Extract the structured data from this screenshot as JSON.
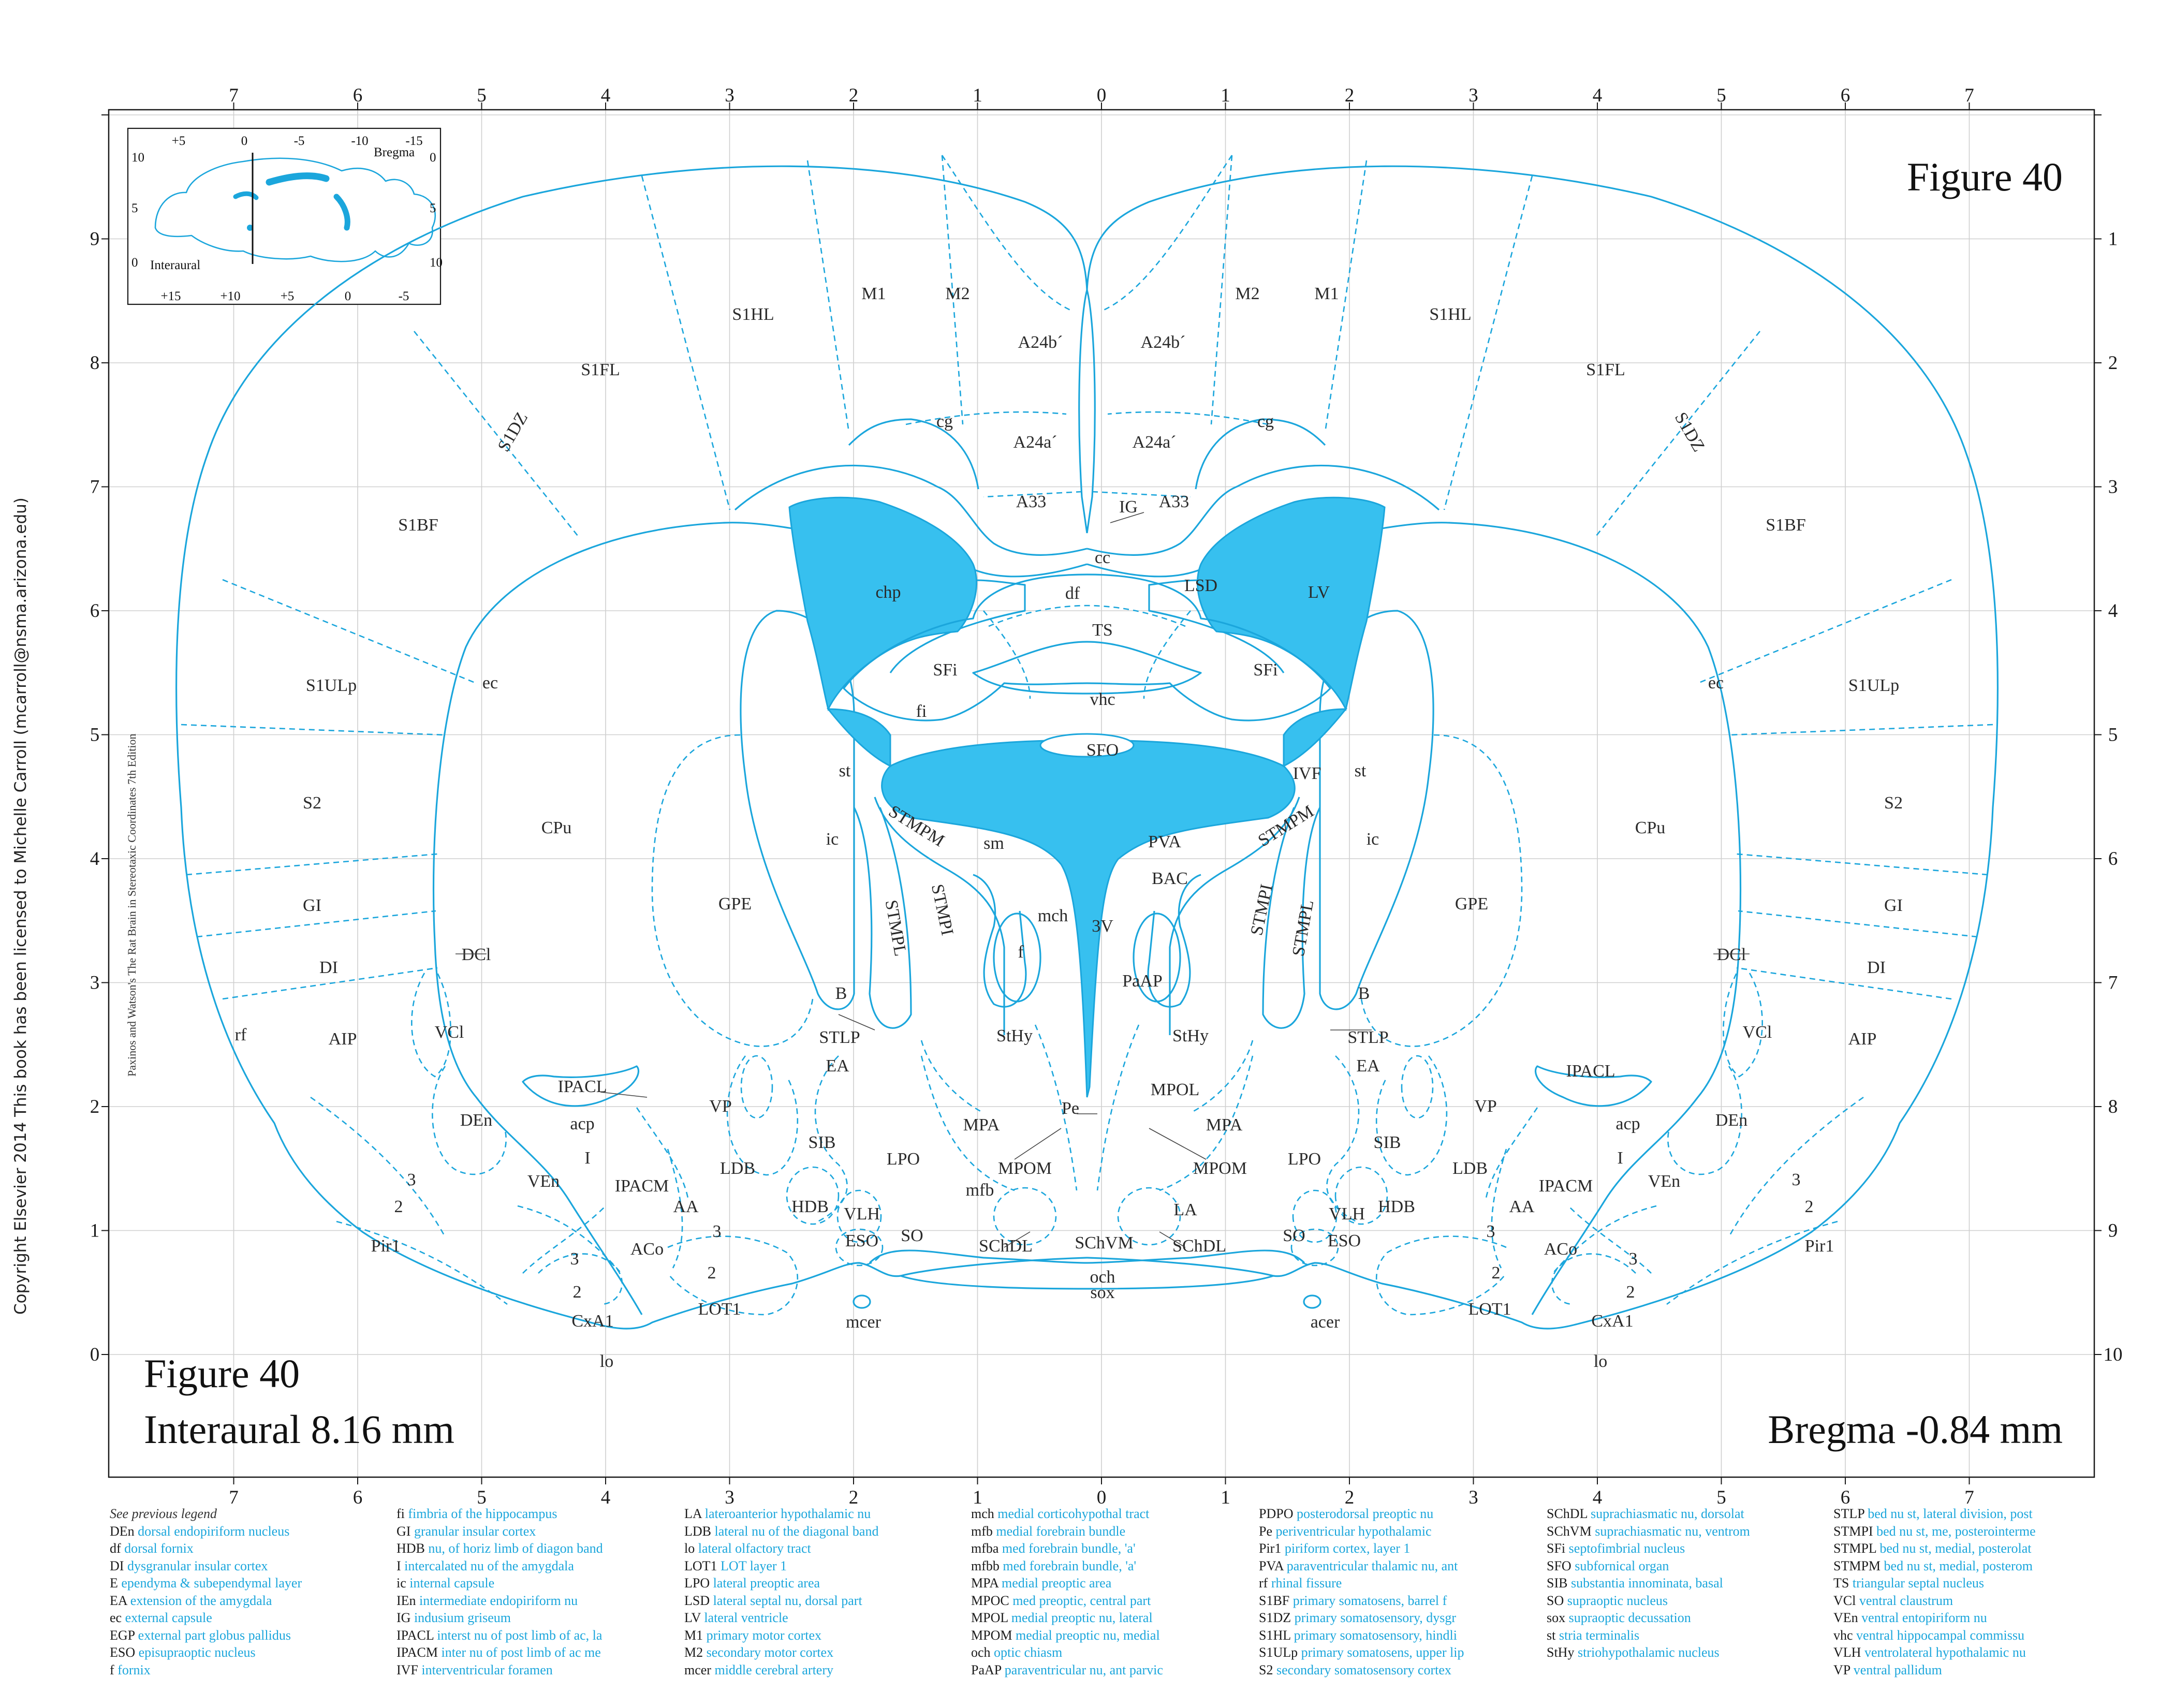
{
  "figure": {
    "title_top": "Figure 40",
    "title_bottom": "Figure 40",
    "interaural": "Interaural 8.16 mm",
    "bregma": "Bregma -0.84 mm"
  },
  "copyright": "Copyright Elsevier 2014 This book has been licensed to Michelle Carroll (mcarroll@nsma.arizona.edu)",
  "book_credit": "Paxinos and Watson's The Rat Brain in Stereotaxic Coordinates   7th Edition",
  "scales": {
    "top_ticks": [
      "7",
      "6",
      "5",
      "4",
      "3",
      "2",
      "1",
      "0",
      "1",
      "2",
      "3",
      "4",
      "5",
      "6",
      "7"
    ],
    "bottom_ticks": [
      "7",
      "6",
      "5",
      "4",
      "3",
      "2",
      "1",
      "0",
      "1",
      "2",
      "3",
      "4",
      "5",
      "6",
      "7"
    ],
    "left_ticks": [
      "9",
      "8",
      "7",
      "6",
      "5",
      "4",
      "3",
      "2",
      "1",
      "0"
    ],
    "right_ticks": [
      "1",
      "2",
      "3",
      "4",
      "5",
      "6",
      "7",
      "8",
      "9",
      "10"
    ]
  },
  "inset": {
    "bregma_label": "Bregma",
    "interaural_label": "Interaural",
    "top_ticks": [
      "+5",
      "0",
      "-5",
      "-10",
      "-15"
    ],
    "bottom_ticks": [
      "+15",
      "+10",
      "+5",
      "0",
      "-5"
    ],
    "left_ticks": [
      "10",
      "5",
      "0"
    ],
    "right_ticks": [
      "0",
      "5",
      "10"
    ]
  },
  "regions": {
    "M1": "M1",
    "M2": "M2",
    "S1HL": "S1HL",
    "S1FL": "S1FL",
    "S1DZ": "S1DZ",
    "S1BF": "S1BF",
    "S1ULp": "S1ULp",
    "S2": "S2",
    "GI": "GI",
    "DI": "DI",
    "AIP": "AIP",
    "A24b": "A24b´",
    "A24a": "A24a´",
    "A33": "A33",
    "cg": "cg",
    "IG": "IG",
    "cc": "cc",
    "chp": "chp",
    "LV": "LV",
    "df": "df",
    "LSD": "LSD",
    "TS": "TS",
    "SFi": "SFi",
    "vhc": "vhc",
    "fi": "fi",
    "SFO": "SFO",
    "IVF": "IVF",
    "st": "st",
    "ic": "ic",
    "ec": "ec",
    "CPu": "CPu",
    "GPE": "GPE",
    "STMPM": "STMPM",
    "sm": "sm",
    "PVA": "PVA",
    "BAC": "BAC",
    "mch": "mch",
    "f": "f",
    "V3": "3V",
    "PaAP": "PaAP",
    "STMPI": "STMPI",
    "STMPL": "STMPL",
    "B": "B",
    "STLP": "STLP",
    "StHy": "StHy",
    "DCl": "DCl",
    "VCl": "VCl",
    "rf": "rf",
    "EA": "EA",
    "IPACL": "IPACL",
    "acp": "acp",
    "DEn": "DEn",
    "VP": "VP",
    "Pe": "Pe",
    "MPOL": "MPOL",
    "MPA": "MPA",
    "SIB": "SIB",
    "LDB": "LDB",
    "LPO": "LPO",
    "MPOM": "MPOM",
    "mfb": "mfb",
    "I": "I",
    "VEn": "VEn",
    "IPACM": "IPACM",
    "AA": "AA",
    "HDB": "HDB",
    "VLH": "VLH",
    "LA": "LA",
    "ESO": "ESO",
    "SO": "SO",
    "SChDL": "SChDL",
    "SChVM": "SChVM",
    "och": "och",
    "sox": "sox",
    "ACo": "ACo",
    "LOT1": "LOT1",
    "CxA1": "CxA1",
    "lo": "lo",
    "Pir1": "Pir1",
    "mcer": "mcer",
    "acer": "acer",
    "n1": "1",
    "n2": "2",
    "n3": "3"
  },
  "legend": {
    "header": "See previous legend",
    "columns": [
      [
        [
          "DEn",
          "dorsal endopiriform nucleus"
        ],
        [
          "df",
          "dorsal fornix"
        ],
        [
          "DI",
          "dysgranular insular cortex"
        ],
        [
          "E",
          "ependyma & subependymal layer"
        ],
        [
          "EA",
          "extension of the amygdala"
        ],
        [
          "ec",
          "external capsule"
        ],
        [
          "EGP",
          "external part globus pallidus"
        ],
        [
          "ESO",
          "episupraoptic nucleus"
        ],
        [
          "f",
          "fornix"
        ]
      ],
      [
        [
          "fi",
          "fimbria of the hippocampus"
        ],
        [
          "GI",
          "granular insular cortex"
        ],
        [
          "HDB",
          "nu, of horiz limb of diagon band"
        ],
        [
          "I",
          "intercalated nu of the amygdala"
        ],
        [
          "ic",
          "internal capsule"
        ],
        [
          "IEn",
          "intermediate endopiriform nu"
        ],
        [
          "IG",
          "indusium griseum"
        ],
        [
          "IPACL",
          "interst nu of post limb of ac, la"
        ],
        [
          "IPACM",
          "inter nu of post limb of ac me"
        ],
        [
          "IVF",
          "interventricular foramen"
        ]
      ],
      [
        [
          "LA",
          "lateroanterior hypothalamic nu"
        ],
        [
          "LDB",
          "lateral nu of the diagonal band"
        ],
        [
          "lo",
          "lateral olfactory tract"
        ],
        [
          "LOT1",
          "LOT layer 1"
        ],
        [
          "LPO",
          "lateral preoptic area"
        ],
        [
          "LSD",
          "lateral septal nu, dorsal part"
        ],
        [
          "LV",
          "lateral ventricle"
        ],
        [
          "M1",
          "primary motor cortex"
        ],
        [
          "M2",
          "secondary motor cortex"
        ],
        [
          "mcer",
          "middle cerebral artery"
        ]
      ],
      [
        [
          "mch",
          "medial corticohypothal tract"
        ],
        [
          "mfb",
          "medial forebrain bundle"
        ],
        [
          "mfba",
          "med forebrain bundle, 'a'"
        ],
        [
          "mfbb",
          "med forebrain bundle, 'a'"
        ],
        [
          "MPA",
          "medial preoptic area"
        ],
        [
          "MPOC",
          "med preoptic, central part"
        ],
        [
          "MPOL",
          "medial preoptic nu, lateral"
        ],
        [
          "MPOM",
          "medial preoptic nu, medial"
        ],
        [
          "och",
          "optic chiasm"
        ],
        [
          "PaAP",
          "paraventricular nu, ant parvic"
        ]
      ],
      [
        [
          "PDPO",
          "posterodorsal preoptic nu"
        ],
        [
          "Pe",
          "periventricular hypothalamic"
        ],
        [
          "Pir1",
          "piriform cortex, layer 1"
        ],
        [
          "PVA",
          "paraventricular thalamic nu, ant"
        ],
        [
          "rf",
          "rhinal fissure"
        ],
        [
          "S1BF",
          "primary somatosens, barrel f"
        ],
        [
          "S1DZ",
          "primary somatosensory, dysgr"
        ],
        [
          "S1HL",
          "primary somatosensory, hindli"
        ],
        [
          "S1ULp",
          "primary somatosens, upper lip"
        ],
        [
          "S2",
          "secondary somatosensory cortex"
        ]
      ],
      [
        [
          "SChDL",
          "suprachiasmatic nu, dorsolat"
        ],
        [
          "SChVM",
          "suprachiasmatic nu, ventrom"
        ],
        [
          "SFi",
          "septofimbrial nucleus"
        ],
        [
          "SFO",
          "subfornical organ"
        ],
        [
          "SIB",
          "substantia innominata, basal"
        ],
        [
          "SO",
          "supraoptic nucleus"
        ],
        [
          "sox",
          "supraoptic decussation"
        ],
        [
          "st",
          "stria terminalis"
        ],
        [
          "StHy",
          "striohypothalamic nucleus"
        ]
      ],
      [
        [
          "STLP",
          "bed nu st, lateral division, post"
        ],
        [
          "STMPI",
          "bed nu st, me, posterointerme"
        ],
        [
          "STMPL",
          "bed nu st, medial, posterolat"
        ],
        [
          "STMPM",
          "bed nu st, medial, posterom"
        ],
        [
          "TS",
          "triangular septal nucleus"
        ],
        [
          "VCl",
          "ventral claustrum"
        ],
        [
          "VEn",
          "ventral entopiriform nu"
        ],
        [
          "vhc",
          "ventral hippocampal commissu"
        ],
        [
          "VLH",
          "ventrolateral hypothalamic nu"
        ],
        [
          "VP",
          "ventral pallidum"
        ]
      ]
    ]
  }
}
